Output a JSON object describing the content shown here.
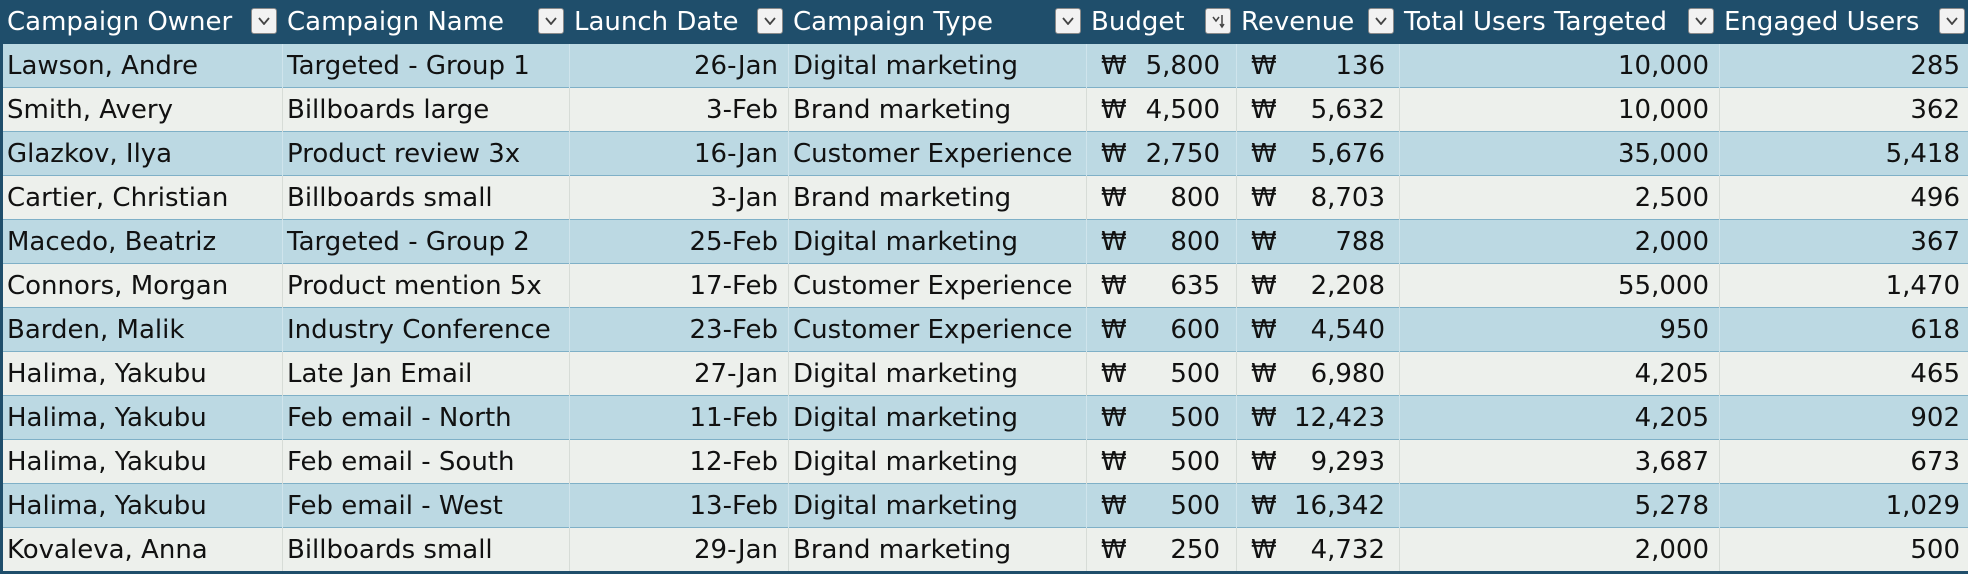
{
  "currency_symbol": "₩",
  "columns": [
    {
      "label": "Campaign Owner",
      "filter_icon": "dropdown-arrow-icon"
    },
    {
      "label": "Campaign Name",
      "filter_icon": "dropdown-arrow-icon"
    },
    {
      "label": "Launch Date",
      "filter_icon": "dropdown-arrow-icon"
    },
    {
      "label": "Campaign Type",
      "filter_icon": "dropdown-arrow-icon"
    },
    {
      "label": "Budget",
      "filter_icon": "sort-descending-icon"
    },
    {
      "label": "Revenue",
      "filter_icon": "dropdown-arrow-icon"
    },
    {
      "label": "Total Users Targeted",
      "filter_icon": "dropdown-arrow-icon"
    },
    {
      "label": "Engaged Users",
      "filter_icon": "dropdown-arrow-icon"
    }
  ],
  "rows": [
    {
      "owner": "Lawson, Andre",
      "name": "Targeted - Group 1",
      "date": "26-Jan",
      "type": "Digital marketing",
      "budget": "5,800",
      "revenue": "136",
      "targeted": "10,000",
      "engaged": "285"
    },
    {
      "owner": "Smith, Avery",
      "name": "Billboards large",
      "date": "3-Feb",
      "type": "Brand marketing",
      "budget": "4,500",
      "revenue": "5,632",
      "targeted": "10,000",
      "engaged": "362"
    },
    {
      "owner": "Glazkov, Ilya",
      "name": "Product review 3x",
      "date": "16-Jan",
      "type": "Customer Experience",
      "budget": "2,750",
      "revenue": "5,676",
      "targeted": "35,000",
      "engaged": "5,418"
    },
    {
      "owner": "Cartier, Christian",
      "name": "Billboards small",
      "date": "3-Jan",
      "type": "Brand marketing",
      "budget": "800",
      "revenue": "8,703",
      "targeted": "2,500",
      "engaged": "496"
    },
    {
      "owner": "Macedo, Beatriz",
      "name": "Targeted - Group 2",
      "date": "25-Feb",
      "type": "Digital marketing",
      "budget": "800",
      "revenue": "788",
      "targeted": "2,000",
      "engaged": "367"
    },
    {
      "owner": "Connors, Morgan",
      "name": "Product mention 5x",
      "date": "17-Feb",
      "type": "Customer Experience",
      "budget": "635",
      "revenue": "2,208",
      "targeted": "55,000",
      "engaged": "1,470"
    },
    {
      "owner": "Barden, Malik",
      "name": "Industry Conference",
      "date": "23-Feb",
      "type": "Customer Experience",
      "budget": "600",
      "revenue": "4,540",
      "targeted": "950",
      "engaged": "618"
    },
    {
      "owner": "Halima, Yakubu",
      "name": "Late Jan Email",
      "date": "27-Jan",
      "type": "Digital marketing",
      "budget": "500",
      "revenue": "6,980",
      "targeted": "4,205",
      "engaged": "465"
    },
    {
      "owner": "Halima, Yakubu",
      "name": "Feb email - North",
      "date": "11-Feb",
      "type": "Digital marketing",
      "budget": "500",
      "revenue": "12,423",
      "targeted": "4,205",
      "engaged": "902"
    },
    {
      "owner": "Halima, Yakubu",
      "name": "Feb email - South",
      "date": "12-Feb",
      "type": "Digital marketing",
      "budget": "500",
      "revenue": "9,293",
      "targeted": "3,687",
      "engaged": "673"
    },
    {
      "owner": "Halima, Yakubu",
      "name": "Feb email - West",
      "date": "13-Feb",
      "type": "Digital marketing",
      "budget": "500",
      "revenue": "16,342",
      "targeted": "5,278",
      "engaged": "1,029"
    },
    {
      "owner": "Kovaleva, Anna",
      "name": "Billboards small",
      "date": "29-Jan",
      "type": "Brand marketing",
      "budget": "250",
      "revenue": "4,732",
      "targeted": "2,000",
      "engaged": "500"
    }
  ],
  "colors": {
    "header_bg": "#1f4e6b",
    "band_a": "#bcd9e3",
    "band_b": "#edf0ec"
  }
}
